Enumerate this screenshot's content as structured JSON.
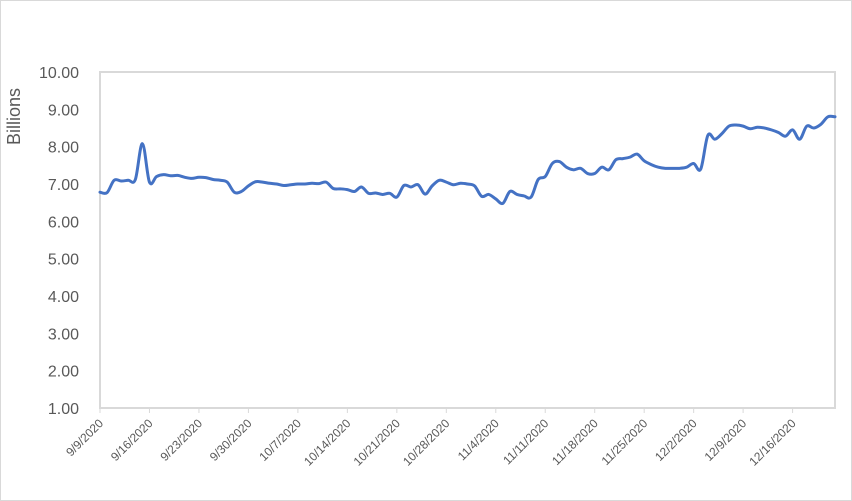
{
  "chart_data": {
    "type": "line",
    "title": "",
    "xlabel": "",
    "ylabel": "Billions",
    "ylim": [
      1.0,
      10.0
    ],
    "y_ticks": [
      "1.00",
      "2.00",
      "3.00",
      "4.00",
      "5.00",
      "6.00",
      "7.00",
      "8.00",
      "9.00",
      "10.00"
    ],
    "x_tick_labels": [
      "9/9/2020",
      "9/16/2020",
      "9/23/2020",
      "9/30/2020",
      "10/7/2020",
      "10/14/2020",
      "10/21/2020",
      "10/28/2020",
      "11/4/2020",
      "11/11/2020",
      "11/18/2020",
      "11/25/2020",
      "12/2/2020",
      "12/9/2020",
      "12/16/2020"
    ],
    "x_start": "2020-09-09",
    "x_end": "2020-12-22",
    "grid": false,
    "legend": "none",
    "line_color": "#4472c4",
    "series": [
      {
        "x": [
          "2020-09-09",
          "2020-09-10",
          "2020-09-11",
          "2020-09-12",
          "2020-09-13",
          "2020-09-14",
          "2020-09-15",
          "2020-09-16",
          "2020-09-17",
          "2020-09-18",
          "2020-09-19",
          "2020-09-20",
          "2020-09-21",
          "2020-09-22",
          "2020-09-23",
          "2020-09-24",
          "2020-09-25",
          "2020-09-26",
          "2020-09-27",
          "2020-09-28",
          "2020-09-29",
          "2020-09-30",
          "2020-10-01",
          "2020-10-02",
          "2020-10-03",
          "2020-10-04",
          "2020-10-05",
          "2020-10-06",
          "2020-10-07",
          "2020-10-08",
          "2020-10-09",
          "2020-10-10",
          "2020-10-11",
          "2020-10-12",
          "2020-10-13",
          "2020-10-14",
          "2020-10-15",
          "2020-10-16",
          "2020-10-17",
          "2020-10-18",
          "2020-10-19",
          "2020-10-20",
          "2020-10-21",
          "2020-10-22",
          "2020-10-23",
          "2020-10-24",
          "2020-10-25",
          "2020-10-26",
          "2020-10-27",
          "2020-10-28",
          "2020-10-29",
          "2020-10-30",
          "2020-10-31",
          "2020-11-01",
          "2020-11-02",
          "2020-11-03",
          "2020-11-04",
          "2020-11-05",
          "2020-11-06",
          "2020-11-07",
          "2020-11-08",
          "2020-11-09",
          "2020-11-10",
          "2020-11-11",
          "2020-11-12",
          "2020-11-13",
          "2020-11-14",
          "2020-11-15",
          "2020-11-16",
          "2020-11-17",
          "2020-11-18",
          "2020-11-19",
          "2020-11-20",
          "2020-11-21",
          "2020-11-22",
          "2020-11-23",
          "2020-11-24",
          "2020-11-25",
          "2020-11-26",
          "2020-11-27",
          "2020-11-28",
          "2020-11-29",
          "2020-11-30",
          "2020-12-01",
          "2020-12-02",
          "2020-12-03",
          "2020-12-04",
          "2020-12-05",
          "2020-12-06",
          "2020-12-07",
          "2020-12-08",
          "2020-12-09",
          "2020-12-10",
          "2020-12-11",
          "2020-12-12",
          "2020-12-13",
          "2020-12-14",
          "2020-12-15",
          "2020-12-16",
          "2020-12-17",
          "2020-12-18",
          "2020-12-19",
          "2020-12-20",
          "2020-12-21",
          "2020-12-22"
        ],
        "y": [
          6.78,
          6.77,
          7.1,
          7.08,
          7.1,
          7.12,
          8.08,
          7.05,
          7.2,
          7.25,
          7.22,
          7.23,
          7.18,
          7.15,
          7.18,
          7.17,
          7.12,
          7.1,
          7.05,
          6.78,
          6.8,
          6.95,
          7.06,
          7.05,
          7.02,
          7.0,
          6.96,
          6.98,
          7.0,
          7.0,
          7.02,
          7.01,
          7.05,
          6.88,
          6.87,
          6.85,
          6.8,
          6.92,
          6.75,
          6.76,
          6.72,
          6.75,
          6.65,
          6.96,
          6.92,
          6.98,
          6.73,
          6.95,
          7.1,
          7.05,
          6.98,
          7.02,
          7.0,
          6.95,
          6.67,
          6.72,
          6.6,
          6.48,
          6.8,
          6.72,
          6.68,
          6.65,
          7.12,
          7.2,
          7.55,
          7.6,
          7.45,
          7.38,
          7.42,
          7.28,
          7.28,
          7.45,
          7.38,
          7.65,
          7.68,
          7.72,
          7.8,
          7.62,
          7.52,
          7.45,
          7.42,
          7.42,
          7.42,
          7.45,
          7.55,
          7.4,
          8.3,
          8.2,
          8.35,
          8.55,
          8.58,
          8.55,
          8.48,
          8.52,
          8.5,
          8.45,
          8.38,
          8.28,
          8.45,
          8.2,
          8.55,
          8.5,
          8.6,
          8.8,
          8.8
        ]
      }
    ]
  }
}
